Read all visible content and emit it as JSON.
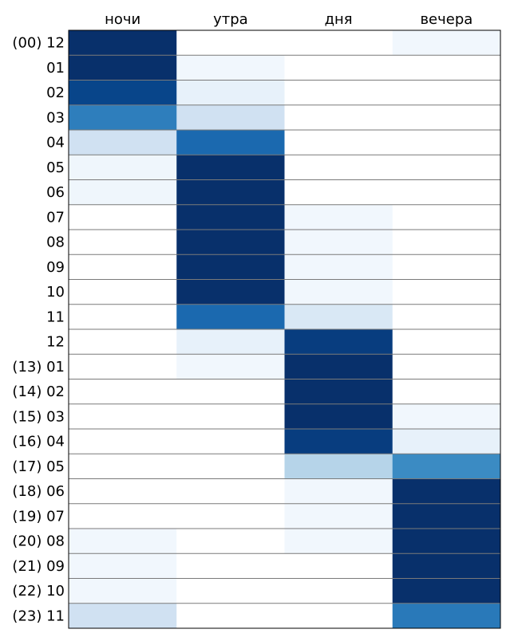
{
  "chart_data": {
    "type": "heatmap",
    "title": "",
    "xlabel": "",
    "ylabel": "",
    "colormap": "Blues",
    "vmin": 0,
    "vmax": 1,
    "columns": [
      "ночи",
      "утра",
      "дня",
      "вечера"
    ],
    "rows": [
      "(00) 12",
      "01",
      "02",
      "03",
      "04",
      "05",
      "06",
      "07",
      "08",
      "09",
      "10",
      "11",
      "12",
      "(13) 01",
      "(14) 02",
      "(15) 03",
      "(16) 04",
      "(17) 05",
      "(18) 06",
      "(19) 07",
      "(20) 08",
      "(21) 09",
      "(22) 10",
      "(23) 11"
    ],
    "values": [
      [
        1.0,
        0.0,
        0.0,
        0.03
      ],
      [
        1.0,
        0.03,
        0.0,
        0.0
      ],
      [
        0.92,
        0.08,
        0.0,
        0.0
      ],
      [
        0.7,
        0.2,
        0.0,
        0.0
      ],
      [
        0.2,
        0.78,
        0.0,
        0.0
      ],
      [
        0.04,
        1.0,
        0.0,
        0.0
      ],
      [
        0.04,
        1.0,
        0.0,
        0.0
      ],
      [
        0.0,
        1.0,
        0.03,
        0.0
      ],
      [
        0.0,
        1.0,
        0.03,
        0.0
      ],
      [
        0.0,
        1.0,
        0.03,
        0.0
      ],
      [
        0.0,
        1.0,
        0.03,
        0.0
      ],
      [
        0.0,
        0.78,
        0.15,
        0.0
      ],
      [
        0.0,
        0.08,
        0.95,
        0.0
      ],
      [
        0.0,
        0.03,
        1.0,
        0.0
      ],
      [
        0.0,
        0.0,
        1.0,
        0.0
      ],
      [
        0.0,
        0.0,
        1.0,
        0.03
      ],
      [
        0.0,
        0.0,
        0.95,
        0.08
      ],
      [
        0.0,
        0.0,
        0.3,
        0.65
      ],
      [
        0.0,
        0.0,
        0.03,
        1.0
      ],
      [
        0.0,
        0.0,
        0.03,
        1.0
      ],
      [
        0.03,
        0.0,
        0.03,
        1.0
      ],
      [
        0.03,
        0.0,
        0.0,
        1.0
      ],
      [
        0.03,
        0.0,
        0.0,
        1.0
      ],
      [
        0.2,
        0.0,
        0.0,
        0.72
      ]
    ]
  }
}
